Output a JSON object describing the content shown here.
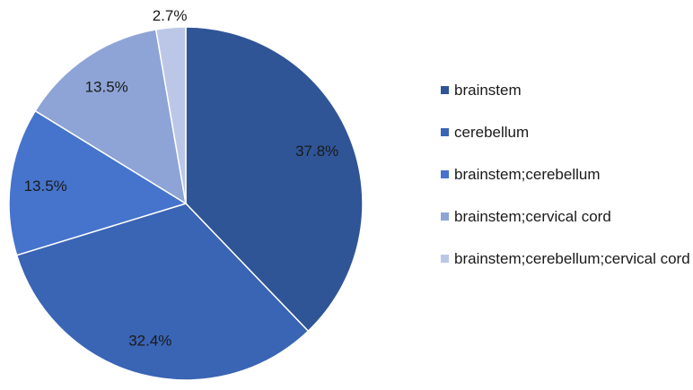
{
  "chart_data": {
    "type": "pie",
    "title": "",
    "legend_position": "right",
    "slices": [
      {
        "name": "brainstem",
        "value": 37.8,
        "label": "37.8%",
        "color": "#2f5597"
      },
      {
        "name": "cerebellum",
        "value": 32.4,
        "label": "32.4%",
        "color": "#3a64b4"
      },
      {
        "name": "brainstem;cerebellum",
        "value": 13.5,
        "label": "13.5%",
        "color": "#4674cc"
      },
      {
        "name": "brainstem;cervical cord",
        "value": 13.5,
        "label": "13.5%",
        "color": "#8ea4d6"
      },
      {
        "name": "brainstem;cerebellum;cervical cord",
        "value": 2.7,
        "label": "2.7%",
        "color": "#bcc7e8"
      }
    ]
  }
}
